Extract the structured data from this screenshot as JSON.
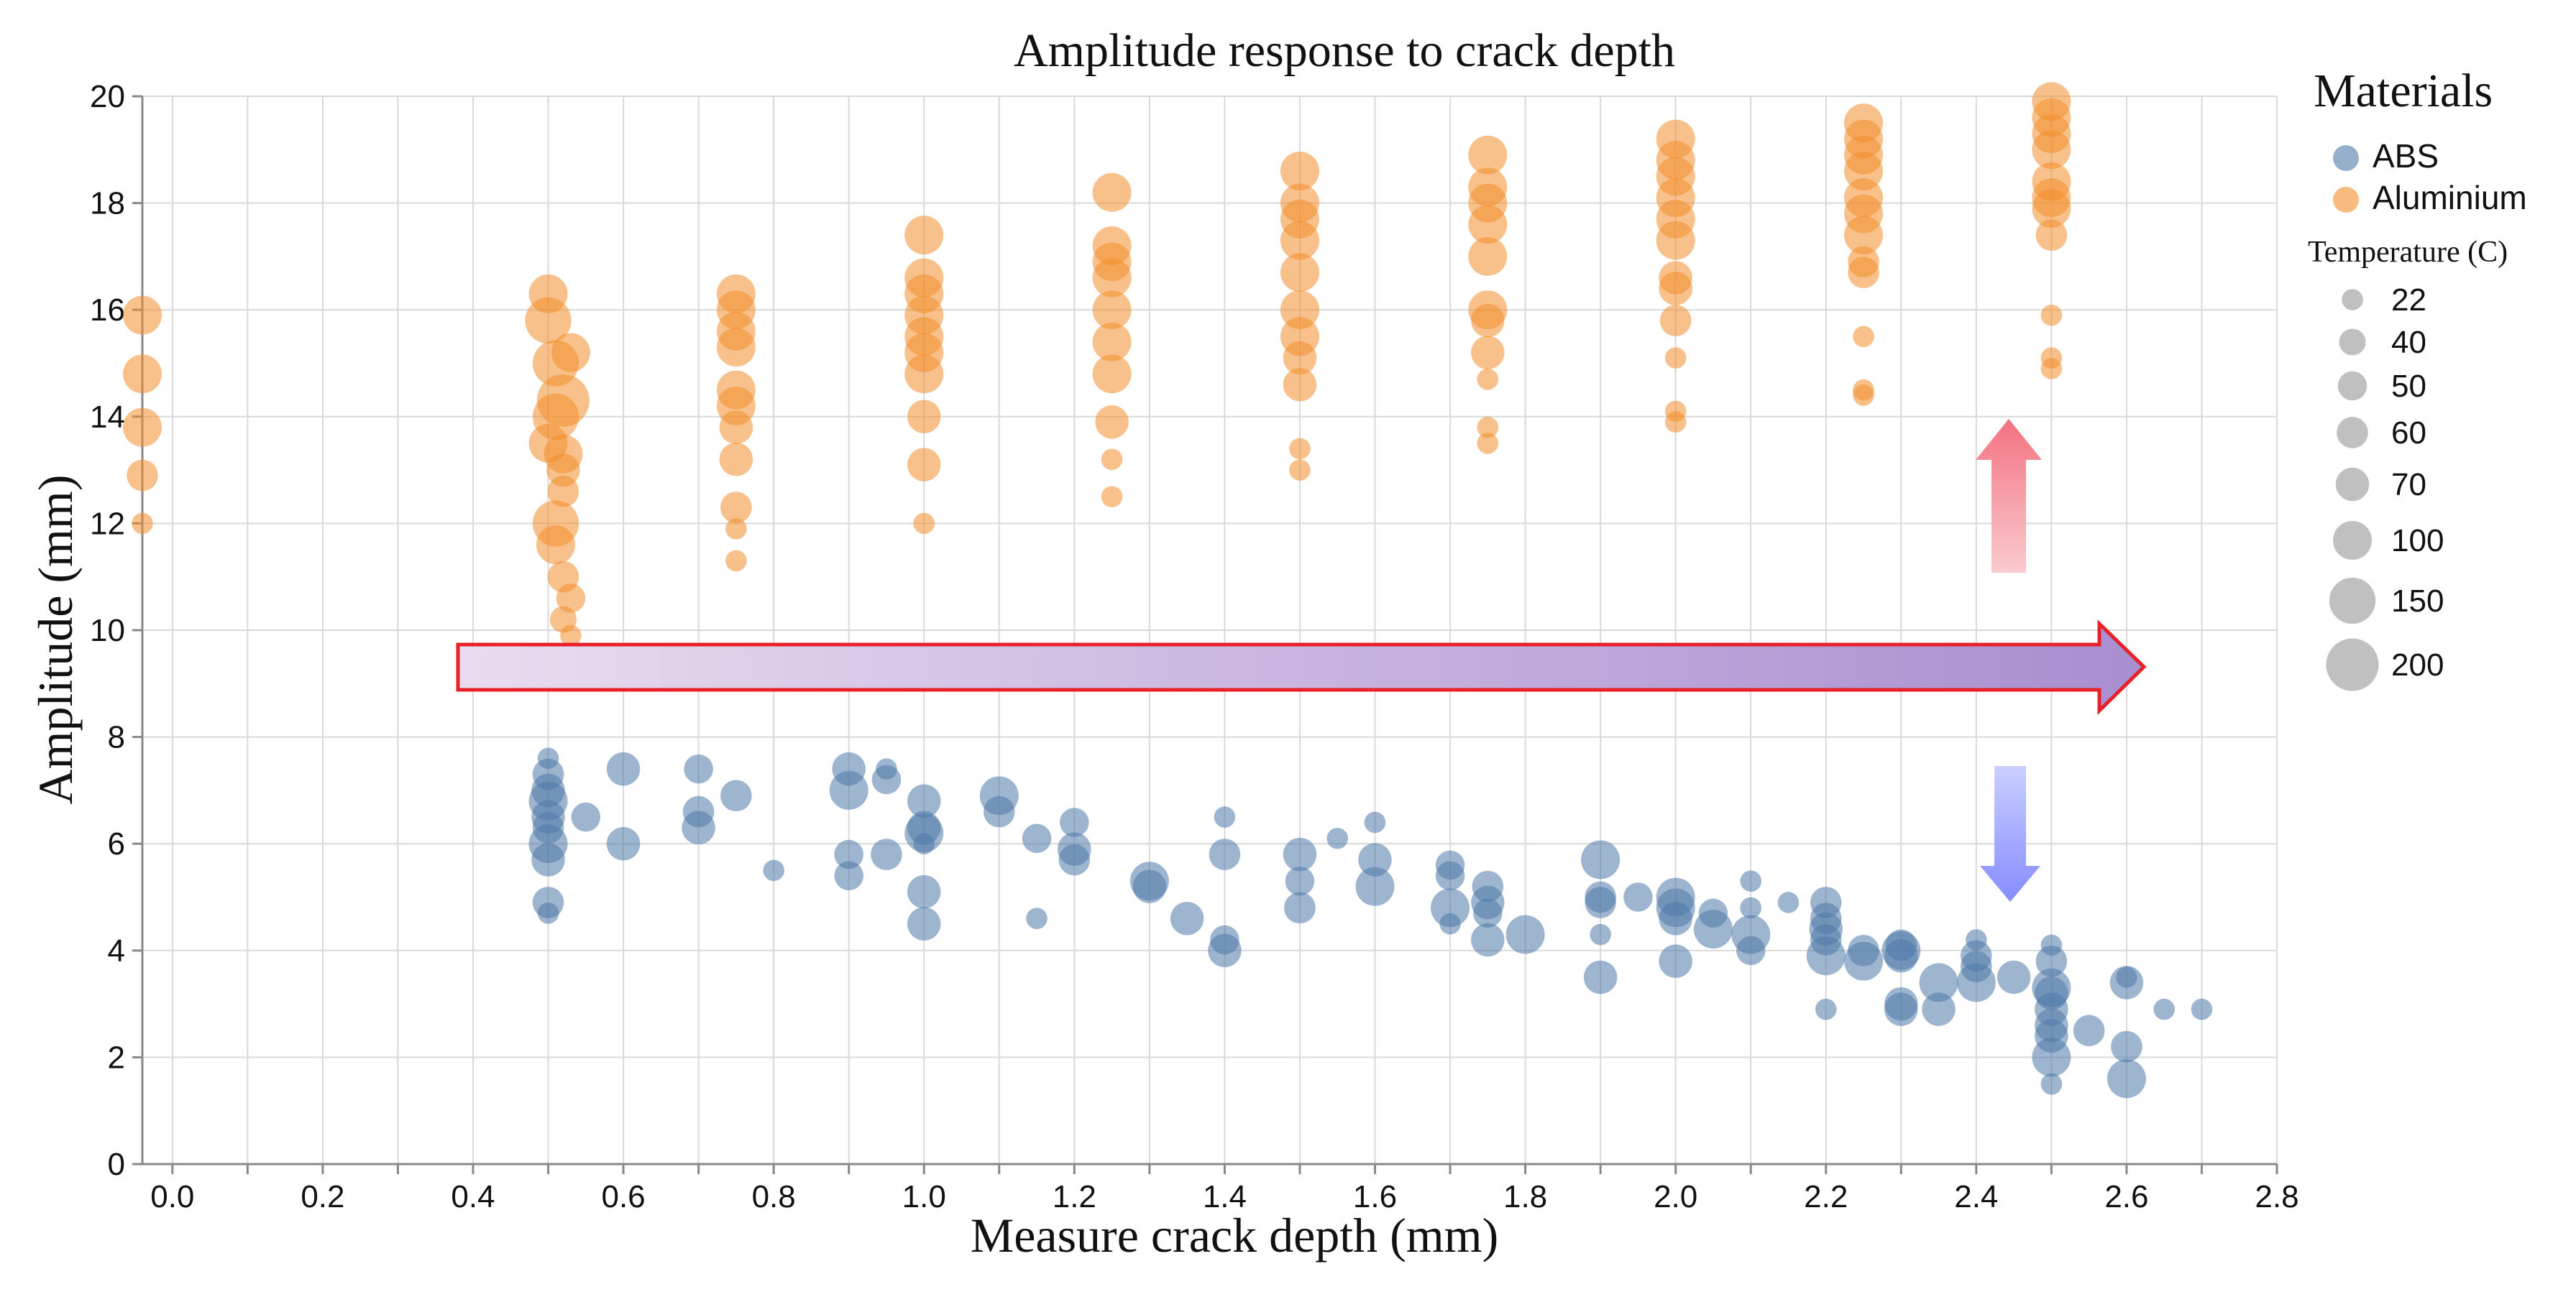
{
  "chart_data": {
    "type": "scatter",
    "title": "Amplitude response to crack depth",
    "xlabel": "Measure crack depth (mm)",
    "ylabel": "Amplitude (mm)",
    "xlim": [
      -0.04,
      2.8
    ],
    "ylim": [
      0,
      20
    ],
    "x_ticks": [
      "0.0",
      "0.2",
      "0.4",
      "0.6",
      "0.8",
      "1.0",
      "1.2",
      "1.4",
      "1.6",
      "1.8",
      "2.0",
      "2.2",
      "2.4",
      "2.6",
      "2.8"
    ],
    "y_ticks": [
      "0",
      "2",
      "4",
      "6",
      "8",
      "10",
      "12",
      "14",
      "16",
      "18",
      "20"
    ],
    "grid": true,
    "legend": {
      "color_title": "Materials",
      "size_title": "Temperature (C)",
      "size_values": [
        "22",
        "40",
        "50",
        "60",
        "70",
        "100",
        "150",
        "200"
      ],
      "position": "top-right"
    },
    "colors": {
      "ABS": "#4e79a7",
      "Aluminium": "#f28e2b"
    },
    "annotations": [
      "upward-red-arrow",
      "rightward-gradient-arrow",
      "downward-blue-arrow"
    ],
    "series": [
      {
        "name": "Aluminium",
        "points": [
          [
            -0.04,
            15.9,
            100
          ],
          [
            -0.04,
            14.8,
            100
          ],
          [
            -0.04,
            13.8,
            100
          ],
          [
            -0.04,
            12.9,
            60
          ],
          [
            -0.04,
            12.0,
            22
          ],
          [
            0.5,
            16.3,
            100
          ],
          [
            0.5,
            15.8,
            150
          ],
          [
            0.51,
            15.0,
            150
          ],
          [
            0.52,
            14.3,
            200
          ],
          [
            0.51,
            14.0,
            150
          ],
          [
            0.5,
            13.5,
            100
          ],
          [
            0.52,
            13.0,
            70
          ],
          [
            0.52,
            12.6,
            60
          ],
          [
            0.51,
            12.0,
            150
          ],
          [
            0.51,
            11.6,
            100
          ],
          [
            0.52,
            11.0,
            60
          ],
          [
            0.53,
            10.6,
            50
          ],
          [
            0.52,
            10.2,
            40
          ],
          [
            0.53,
            9.9,
            22
          ],
          [
            0.53,
            15.2,
            100
          ],
          [
            0.52,
            13.3,
            100
          ],
          [
            0.75,
            16.3,
            100
          ],
          [
            0.75,
            16.0,
            100
          ],
          [
            0.75,
            15.6,
            100
          ],
          [
            0.75,
            15.3,
            100
          ],
          [
            0.75,
            14.5,
            100
          ],
          [
            0.75,
            14.2,
            100
          ],
          [
            0.75,
            13.8,
            70
          ],
          [
            0.75,
            13.2,
            70
          ],
          [
            0.75,
            12.3,
            60
          ],
          [
            0.75,
            11.9,
            22
          ],
          [
            0.75,
            11.3,
            22
          ],
          [
            1.0,
            17.4,
            100
          ],
          [
            1.0,
            16.6,
            100
          ],
          [
            1.0,
            16.3,
            100
          ],
          [
            1.0,
            15.9,
            100
          ],
          [
            1.0,
            15.5,
            100
          ],
          [
            1.0,
            15.2,
            100
          ],
          [
            1.0,
            14.8,
            100
          ],
          [
            1.0,
            14.0,
            70
          ],
          [
            1.0,
            13.1,
            70
          ],
          [
            1.0,
            12.0,
            22
          ],
          [
            1.25,
            18.2,
            100
          ],
          [
            1.25,
            17.2,
            100
          ],
          [
            1.25,
            16.9,
            100
          ],
          [
            1.25,
            16.6,
            100
          ],
          [
            1.25,
            16.0,
            100
          ],
          [
            1.25,
            15.4,
            100
          ],
          [
            1.25,
            14.8,
            100
          ],
          [
            1.25,
            13.9,
            70
          ],
          [
            1.25,
            13.2,
            22
          ],
          [
            1.25,
            12.5,
            22
          ],
          [
            1.5,
            18.6,
            100
          ],
          [
            1.5,
            18.0,
            100
          ],
          [
            1.5,
            17.7,
            100
          ],
          [
            1.5,
            17.3,
            100
          ],
          [
            1.5,
            16.7,
            100
          ],
          [
            1.5,
            16.0,
            100
          ],
          [
            1.5,
            15.5,
            100
          ],
          [
            1.5,
            15.1,
            70
          ],
          [
            1.5,
            14.6,
            70
          ],
          [
            1.5,
            13.4,
            22
          ],
          [
            1.5,
            13.0,
            22
          ],
          [
            1.75,
            18.9,
            100
          ],
          [
            1.75,
            18.3,
            100
          ],
          [
            1.75,
            18.0,
            100
          ],
          [
            1.75,
            17.6,
            100
          ],
          [
            1.75,
            17.0,
            100
          ],
          [
            1.75,
            16.0,
            100
          ],
          [
            1.75,
            15.8,
            70
          ],
          [
            1.75,
            15.2,
            70
          ],
          [
            1.75,
            14.7,
            22
          ],
          [
            1.75,
            13.8,
            22
          ],
          [
            1.75,
            13.5,
            22
          ],
          [
            2.0,
            19.2,
            100
          ],
          [
            2.0,
            18.8,
            100
          ],
          [
            2.0,
            18.5,
            100
          ],
          [
            2.0,
            18.1,
            100
          ],
          [
            2.0,
            17.7,
            100
          ],
          [
            2.0,
            17.3,
            100
          ],
          [
            2.0,
            16.6,
            70
          ],
          [
            2.0,
            16.4,
            70
          ],
          [
            2.0,
            15.8,
            60
          ],
          [
            2.0,
            15.1,
            22
          ],
          [
            2.0,
            14.1,
            22
          ],
          [
            2.0,
            13.9,
            22
          ],
          [
            2.25,
            19.5,
            100
          ],
          [
            2.25,
            19.2,
            100
          ],
          [
            2.25,
            18.9,
            100
          ],
          [
            2.25,
            18.6,
            100
          ],
          [
            2.25,
            18.1,
            100
          ],
          [
            2.25,
            17.8,
            100
          ],
          [
            2.25,
            17.4,
            100
          ],
          [
            2.25,
            16.9,
            60
          ],
          [
            2.25,
            16.7,
            60
          ],
          [
            2.25,
            15.5,
            22
          ],
          [
            2.25,
            14.5,
            22
          ],
          [
            2.25,
            14.4,
            22
          ],
          [
            2.5,
            19.9,
            100
          ],
          [
            2.5,
            19.6,
            100
          ],
          [
            2.5,
            19.3,
            100
          ],
          [
            2.5,
            19.0,
            100
          ],
          [
            2.5,
            18.4,
            100
          ],
          [
            2.5,
            18.1,
            100
          ],
          [
            2.5,
            17.9,
            100
          ],
          [
            2.5,
            17.4,
            60
          ],
          [
            2.5,
            15.9,
            22
          ],
          [
            2.5,
            15.1,
            22
          ],
          [
            2.5,
            14.9,
            22
          ]
        ]
      },
      {
        "name": "ABS",
        "points": [
          [
            0.5,
            7.6,
            22
          ],
          [
            0.5,
            7.3,
            60
          ],
          [
            0.5,
            7.0,
            70
          ],
          [
            0.5,
            6.8,
            100
          ],
          [
            0.5,
            6.5,
            70
          ],
          [
            0.5,
            6.3,
            60
          ],
          [
            0.5,
            6.0,
            100
          ],
          [
            0.5,
            5.7,
            70
          ],
          [
            0.5,
            4.9,
            60
          ],
          [
            0.5,
            4.7,
            22
          ],
          [
            0.55,
            6.5,
            50
          ],
          [
            0.6,
            7.4,
            70
          ],
          [
            0.6,
            6.0,
            70
          ],
          [
            0.7,
            7.4,
            50
          ],
          [
            0.7,
            6.6,
            60
          ],
          [
            0.7,
            6.3,
            70
          ],
          [
            0.75,
            6.9,
            60
          ],
          [
            0.8,
            5.5,
            22
          ],
          [
            0.9,
            7.4,
            70
          ],
          [
            0.9,
            7.0,
            100
          ],
          [
            0.9,
            5.8,
            50
          ],
          [
            0.9,
            5.4,
            50
          ],
          [
            0.95,
            7.4,
            22
          ],
          [
            0.95,
            7.2,
            50
          ],
          [
            0.95,
            5.8,
            60
          ],
          [
            1.0,
            6.8,
            70
          ],
          [
            1.0,
            6.3,
            70
          ],
          [
            1.0,
            6.2,
            100
          ],
          [
            1.0,
            6.0,
            22
          ],
          [
            1.0,
            5.1,
            70
          ],
          [
            1.0,
            4.5,
            70
          ],
          [
            1.1,
            6.9,
            100
          ],
          [
            1.1,
            6.6,
            60
          ],
          [
            1.15,
            6.1,
            50
          ],
          [
            1.15,
            4.6,
            22
          ],
          [
            1.2,
            6.4,
            50
          ],
          [
            1.2,
            5.9,
            70
          ],
          [
            1.2,
            5.7,
            60
          ],
          [
            1.3,
            5.3,
            100
          ],
          [
            1.3,
            5.2,
            70
          ],
          [
            1.35,
            4.6,
            70
          ],
          [
            1.4,
            6.5,
            22
          ],
          [
            1.4,
            5.8,
            60
          ],
          [
            1.4,
            4.2,
            50
          ],
          [
            1.4,
            4.0,
            70
          ],
          [
            1.5,
            5.8,
            70
          ],
          [
            1.5,
            5.3,
            50
          ],
          [
            1.5,
            4.8,
            60
          ],
          [
            1.55,
            6.1,
            22
          ],
          [
            1.6,
            6.4,
            22
          ],
          [
            1.6,
            5.7,
            70
          ],
          [
            1.6,
            5.2,
            100
          ],
          [
            1.7,
            5.6,
            50
          ],
          [
            1.7,
            5.4,
            50
          ],
          [
            1.7,
            4.8,
            100
          ],
          [
            1.7,
            4.5,
            22
          ],
          [
            1.75,
            5.2,
            60
          ],
          [
            1.75,
            4.9,
            70
          ],
          [
            1.75,
            4.7,
            50
          ],
          [
            1.75,
            4.2,
            70
          ],
          [
            1.8,
            4.3,
            100
          ],
          [
            1.9,
            5.7,
            100
          ],
          [
            1.9,
            5.0,
            60
          ],
          [
            1.9,
            4.9,
            60
          ],
          [
            1.9,
            4.3,
            22
          ],
          [
            1.9,
            3.5,
            70
          ],
          [
            1.95,
            5.0,
            50
          ],
          [
            2.0,
            5.0,
            100
          ],
          [
            2.0,
            4.8,
            100
          ],
          [
            2.0,
            4.6,
            70
          ],
          [
            2.0,
            3.8,
            70
          ],
          [
            2.05,
            4.4,
            100
          ],
          [
            2.05,
            4.7,
            50
          ],
          [
            2.1,
            5.3,
            22
          ],
          [
            2.1,
            4.8,
            22
          ],
          [
            2.1,
            4.3,
            100
          ],
          [
            2.1,
            4.0,
            50
          ],
          [
            2.15,
            4.9,
            22
          ],
          [
            2.2,
            4.9,
            60
          ],
          [
            2.2,
            4.6,
            60
          ],
          [
            2.2,
            4.4,
            70
          ],
          [
            2.2,
            4.2,
            60
          ],
          [
            2.2,
            3.9,
            100
          ],
          [
            2.2,
            2.9,
            22
          ],
          [
            2.25,
            4.0,
            60
          ],
          [
            2.25,
            3.8,
            100
          ],
          [
            2.3,
            4.1,
            60
          ],
          [
            2.3,
            4.0,
            100
          ],
          [
            2.3,
            3.9,
            70
          ],
          [
            2.3,
            3.0,
            70
          ],
          [
            2.3,
            2.9,
            70
          ],
          [
            2.35,
            3.4,
            100
          ],
          [
            2.35,
            2.9,
            70
          ],
          [
            2.4,
            4.2,
            22
          ],
          [
            2.4,
            3.9,
            60
          ],
          [
            2.4,
            3.7,
            60
          ],
          [
            2.4,
            3.4,
            100
          ],
          [
            2.45,
            3.5,
            70
          ],
          [
            2.5,
            4.1,
            22
          ],
          [
            2.5,
            3.8,
            60
          ],
          [
            2.5,
            3.3,
            100
          ],
          [
            2.5,
            3.2,
            70
          ],
          [
            2.5,
            2.9,
            70
          ],
          [
            2.5,
            2.6,
            70
          ],
          [
            2.5,
            2.4,
            70
          ],
          [
            2.5,
            2.0,
            100
          ],
          [
            2.5,
            1.5,
            22
          ],
          [
            2.55,
            2.5,
            60
          ],
          [
            2.6,
            3.5,
            22
          ],
          [
            2.6,
            3.4,
            70
          ],
          [
            2.6,
            2.2,
            60
          ],
          [
            2.6,
            1.6,
            100
          ],
          [
            2.65,
            2.9,
            22
          ],
          [
            2.7,
            2.9,
            22
          ]
        ]
      }
    ]
  }
}
